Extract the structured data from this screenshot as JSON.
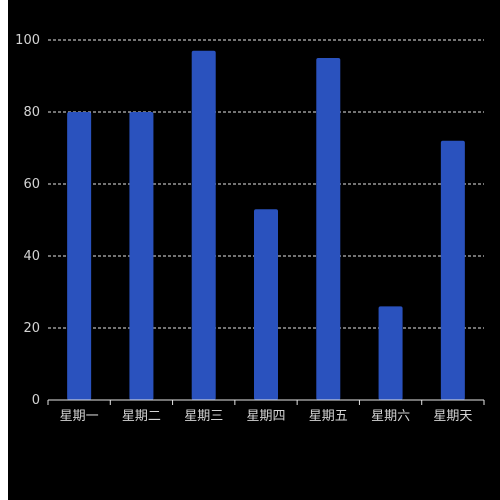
{
  "chart_data": {
    "type": "bar",
    "categories": [
      "星期一",
      "星期二",
      "星期三",
      "星期四",
      "星期五",
      "星期六",
      "星期天"
    ],
    "values": [
      80,
      80,
      97,
      53,
      95,
      26,
      72
    ],
    "ylim": [
      0,
      100
    ],
    "yticks": [
      0,
      20,
      40,
      60,
      80,
      100
    ],
    "grid": true,
    "colors": {
      "background": "#000000",
      "bar": "#2a52be",
      "grid": "#e6e6e6",
      "axis": "#e6e6e6",
      "text": "#d4d4d4"
    }
  }
}
